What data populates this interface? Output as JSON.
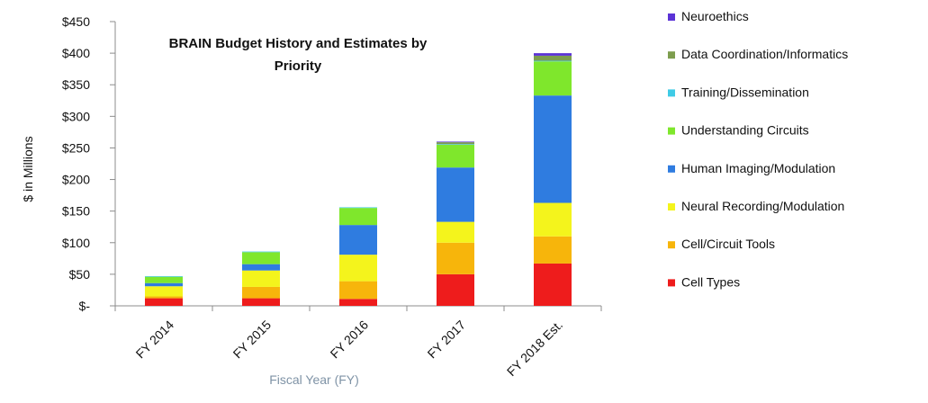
{
  "chart_data": {
    "type": "bar",
    "stacked": true,
    "title_lines": [
      "BRAIN Budget History and Estimates by",
      "Priority"
    ],
    "xlabel": "Fiscal Year (FY)",
    "ylabel": "$ in Millions",
    "ylim": [
      0,
      450
    ],
    "yticks": [
      0,
      50,
      100,
      150,
      200,
      250,
      300,
      350,
      400,
      450
    ],
    "ytick_labels": [
      "$-",
      "$50",
      "$100",
      "$150",
      "$200",
      "$250",
      "$300",
      "$350",
      "$400",
      "$450"
    ],
    "categories": [
      "FY 2014",
      "FY 2015",
      "FY 2016",
      "FY 2017",
      "FY 2018 Est."
    ],
    "series": [
      {
        "name": "Cell Types",
        "color": "#ee1c1c",
        "values": [
          12,
          12,
          11,
          50,
          67
        ]
      },
      {
        "name": "Cell/Circuit Tools",
        "color": "#f7b50b",
        "values": [
          3,
          18,
          28,
          50,
          43
        ]
      },
      {
        "name": "Neural Recording/Modulation",
        "color": "#f4f41c",
        "values": [
          16,
          26,
          42,
          33,
          53
        ]
      },
      {
        "name": "Human Imaging/Modulation",
        "color": "#2f7ce0",
        "values": [
          5,
          10,
          47,
          86,
          170
        ]
      },
      {
        "name": "Understanding Circuits",
        "color": "#7fe72c",
        "values": [
          10,
          19,
          27,
          36,
          54
        ]
      },
      {
        "name": "Training/Dissemination",
        "color": "#3fcbe6",
        "values": [
          1,
          1,
          1,
          1,
          1
        ]
      },
      {
        "name": "Data Coordination/Informatics",
        "color": "#7d9d4e",
        "values": [
          0,
          0,
          0,
          3,
          8
        ]
      },
      {
        "name": "Neuroethics",
        "color": "#5b33d6",
        "values": [
          0,
          0,
          0,
          1,
          4
        ]
      }
    ],
    "legend_position": "right",
    "legend_order": [
      "Neuroethics",
      "Data Coordination/Informatics",
      "Training/Dissemination",
      "Understanding Circuits",
      "Human Imaging/Modulation",
      "Neural Recording/Modulation",
      "Cell/Circuit Tools",
      "Cell Types"
    ],
    "grid": false
  }
}
